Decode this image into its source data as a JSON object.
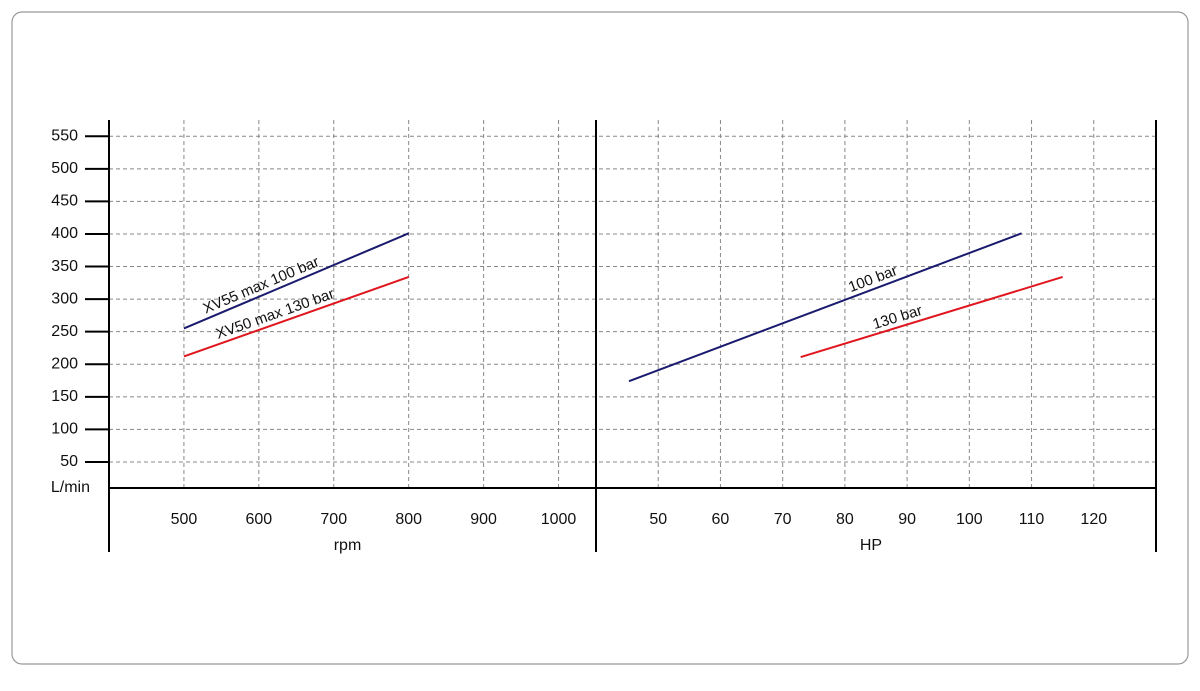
{
  "chart_data": [
    {
      "type": "line",
      "x_label": "rpm",
      "y_label": "L/min",
      "xlim": [
        400,
        1050
      ],
      "xticks": [
        500,
        600,
        700,
        800,
        900,
        1000
      ],
      "ylim": [
        10,
        575
      ],
      "yticks": [
        50,
        100,
        150,
        200,
        250,
        300,
        350,
        400,
        450,
        500,
        550
      ],
      "grid": true,
      "series": [
        {
          "name": "XV55 max 100 bar",
          "color": "#1a1a6e",
          "x": [
            500,
            800
          ],
          "values": [
            255,
            401
          ]
        },
        {
          "name": "XV50 max 130 bar",
          "color": "#e0161e",
          "x": [
            500,
            800
          ],
          "values": [
            212,
            334
          ]
        }
      ]
    },
    {
      "type": "line",
      "x_label": "HP",
      "xlim": [
        40,
        130
      ],
      "xticks": [
        50,
        60,
        70,
        80,
        90,
        100,
        110,
        120
      ],
      "grid": true,
      "series": [
        {
          "name": "100 bar",
          "color": "#1a1a6e",
          "x": [
            45.3,
            108.4
          ],
          "values": [
            174,
            401
          ]
        },
        {
          "name": "130 bar",
          "color": "#e0161e",
          "x": [
            72.9,
            115
          ],
          "values": [
            211,
            334
          ]
        }
      ]
    }
  ]
}
